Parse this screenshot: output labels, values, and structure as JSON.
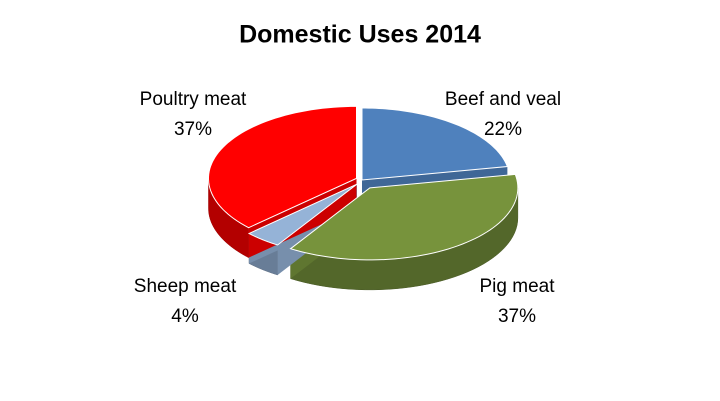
{
  "chart_data": {
    "type": "pie",
    "title": "Domestic Uses 2014",
    "categories": [
      "Beef and veal",
      "Pig meat",
      "Sheep meat",
      "Poultry meat"
    ],
    "values": [
      22,
      37,
      4,
      37
    ],
    "value_labels": [
      "22%",
      "37%",
      "4%",
      "37%"
    ],
    "colors": [
      "#4f81bd",
      "#77933c",
      "#95b3d7",
      "#ff0000"
    ]
  }
}
